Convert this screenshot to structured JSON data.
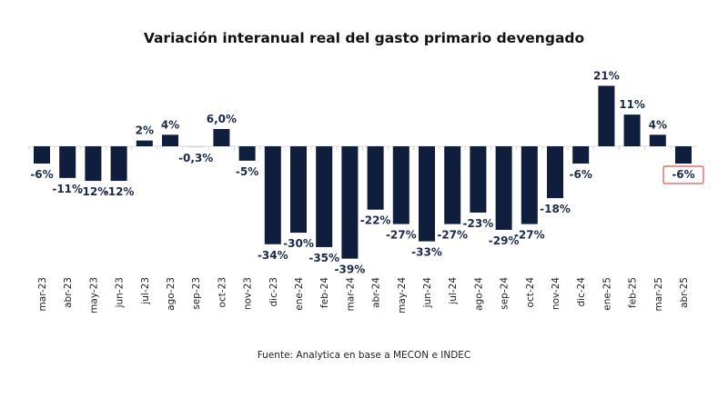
{
  "chart_data": {
    "type": "bar",
    "title": "Variación interanual real del gasto primario devengado",
    "source": "Fuente: Analytica en base a MECON e INDEC",
    "categories": [
      "mar-23",
      "abr-23",
      "may-23",
      "jun-23",
      "jul-23",
      "ago-23",
      "sep-23",
      "oct-23",
      "nov-23",
      "dic-23",
      "ene-24",
      "feb-24",
      "mar-24",
      "abr-24",
      "may-24",
      "jun-24",
      "jul-24",
      "ago-24",
      "sep-24",
      "oct-24",
      "nov-24",
      "dic-24",
      "ene-25",
      "feb-25",
      "mar-25",
      "abr-25"
    ],
    "values": [
      -6,
      -11,
      -12,
      -12,
      2,
      4,
      -0.3,
      6.0,
      -5,
      -34,
      -30,
      -35,
      -39,
      -22,
      -27,
      -33,
      -27,
      -23,
      -29,
      -27,
      -18,
      -6,
      21,
      11,
      4,
      -6
    ],
    "data_labels": [
      "-6%",
      "-11%",
      "-12%",
      "-12%",
      "2%",
      "4%",
      "-0,3%",
      "6,0%",
      "-5%",
      "-34%",
      "-30%",
      "-35%",
      "-39%",
      "-22%",
      "-27%",
      "-33%",
      "-27%",
      "-23%",
      "-29%",
      "-27%",
      "-18%",
      "-6%",
      "21%",
      "11%",
      "4%",
      "-6%"
    ],
    "highlighted_label": "abr-25",
    "unit": "%",
    "bar_color": "#0f1e3c",
    "label_color": "#1c2a4a",
    "highlight_color": "#e05050",
    "grid": false,
    "legend": "none"
  }
}
